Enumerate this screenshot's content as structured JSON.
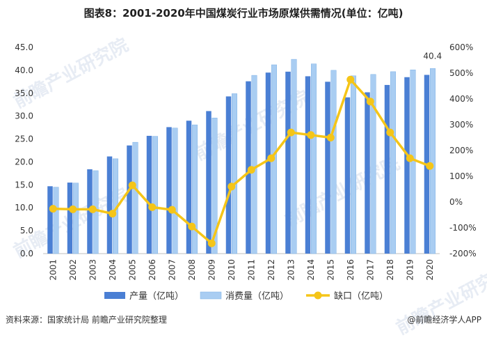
{
  "title": "图表8：2001-2020年中国煤炭行业市场原煤供需情况(单位：亿吨)",
  "footer": {
    "source": "资料来源：国家统计局 前瞻产业研究院整理",
    "brand": "@前瞻经济学人APP"
  },
  "watermark": "前瞻产业研究院",
  "colors": {
    "production": "#4a7fd4",
    "consumption": "#a9cdf2",
    "gap": "#f5c518"
  },
  "chart_data": {
    "type": "bar",
    "title": "图表8：2001-2020年中国煤炭行业市场原煤供需情况(单位：亿吨)",
    "categories": [
      "2001",
      "2002",
      "2003",
      "2004",
      "2005",
      "2006",
      "2007",
      "2008",
      "2009",
      "2010",
      "2011",
      "2012",
      "2013",
      "2014",
      "2015",
      "2016",
      "2017",
      "2018",
      "2019",
      "2020"
    ],
    "series": [
      {
        "name": "产量（亿吨）",
        "type": "bar",
        "axis": "left",
        "values": [
          14.7,
          15.5,
          18.4,
          21.2,
          23.6,
          25.7,
          27.6,
          29.0,
          31.1,
          34.3,
          37.6,
          39.5,
          39.7,
          38.7,
          37.5,
          34.1,
          35.2,
          36.8,
          38.5,
          39.0
        ]
      },
      {
        "name": "消费量（亿吨）",
        "type": "bar",
        "axis": "left",
        "values": [
          14.5,
          15.4,
          18.1,
          20.7,
          24.3,
          25.6,
          27.4,
          28.1,
          29.6,
          34.9,
          38.9,
          41.2,
          42.4,
          41.4,
          40.0,
          38.8,
          39.1,
          39.7,
          40.1,
          40.4
        ]
      },
      {
        "name": "缺口（亿吨）",
        "type": "line",
        "axis": "right",
        "values": [
          -26,
          -28,
          -28,
          -45,
          65,
          -20,
          -30,
          -95,
          -160,
          60,
          125,
          170,
          270,
          260,
          250,
          475,
          390,
          270,
          170,
          140
        ]
      }
    ],
    "data_labels": [
      {
        "series": 1,
        "index": 19,
        "text": "40.4"
      }
    ],
    "y_left": {
      "min": 0,
      "max": 45,
      "step": 5,
      "ticks": [
        "0.0",
        "5.0",
        "10.0",
        "15.0",
        "20.0",
        "25.0",
        "30.0",
        "35.0",
        "40.0",
        "45.0"
      ]
    },
    "y_right": {
      "min": -200,
      "max": 600,
      "step": 100,
      "ticks": [
        "-200%",
        "-100%",
        "0%",
        "100%",
        "200%",
        "300%",
        "400%",
        "500%",
        "600%"
      ]
    },
    "grid": false,
    "legend_position": "bottom"
  }
}
